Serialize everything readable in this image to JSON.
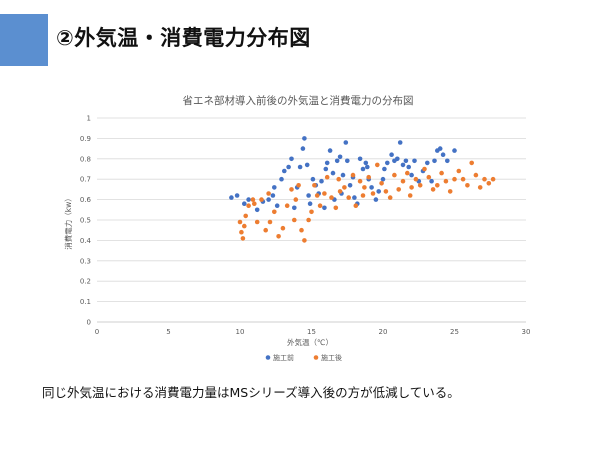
{
  "slide": {
    "title": "②外気温・消費電力分布図",
    "footnote": "同じ外気温における消費電力量はMSシリーズ導入後の方が低減している。",
    "accent_color": "#5b8fd0"
  },
  "chart_data": {
    "type": "scatter",
    "title": "省エネ部材導入前後の外気温と消費電力の分布図",
    "xlabel": "外気温（℃）",
    "ylabel": "消費電力（kw）",
    "xlim": [
      0,
      30
    ],
    "ylim": [
      0,
      1
    ],
    "xticks": [
      "0",
      "5",
      "10",
      "15",
      "20",
      "25",
      "30"
    ],
    "yticks": [
      "0",
      "0.1",
      "0.2",
      "0.3",
      "0.4",
      "0.5",
      "0.6",
      "0.7",
      "0.8",
      "0.9",
      "1"
    ],
    "grid": "horizontal",
    "legend": "bottom",
    "series": [
      {
        "name": "施工前",
        "color": "#4472c4",
        "points": [
          [
            9.4,
            0.61
          ],
          [
            9.8,
            0.62
          ],
          [
            10.3,
            0.58
          ],
          [
            10.6,
            0.6
          ],
          [
            11.2,
            0.55
          ],
          [
            11.6,
            0.59
          ],
          [
            12.0,
            0.6
          ],
          [
            12.3,
            0.62
          ],
          [
            12.6,
            0.57
          ],
          [
            12.9,
            0.7
          ],
          [
            13.1,
            0.74
          ],
          [
            13.4,
            0.76
          ],
          [
            13.6,
            0.8
          ],
          [
            13.8,
            0.56
          ],
          [
            14.0,
            0.66
          ],
          [
            14.2,
            0.76
          ],
          [
            14.4,
            0.85
          ],
          [
            14.5,
            0.9
          ],
          [
            14.7,
            0.77
          ],
          [
            14.9,
            0.58
          ],
          [
            15.1,
            0.7
          ],
          [
            15.3,
            0.67
          ],
          [
            15.5,
            0.63
          ],
          [
            15.7,
            0.69
          ],
          [
            15.9,
            0.56
          ],
          [
            16.1,
            0.78
          ],
          [
            16.3,
            0.84
          ],
          [
            16.5,
            0.73
          ],
          [
            16.6,
            0.6
          ],
          [
            16.8,
            0.79
          ],
          [
            17.0,
            0.81
          ],
          [
            17.2,
            0.72
          ],
          [
            17.4,
            0.88
          ],
          [
            17.5,
            0.79
          ],
          [
            17.7,
            0.67
          ],
          [
            17.9,
            0.71
          ],
          [
            18.0,
            0.61
          ],
          [
            18.2,
            0.58
          ],
          [
            18.4,
            0.8
          ],
          [
            18.6,
            0.75
          ],
          [
            18.8,
            0.78
          ],
          [
            19.0,
            0.7
          ],
          [
            19.2,
            0.66
          ],
          [
            19.5,
            0.6
          ],
          [
            19.7,
            0.64
          ],
          [
            20.0,
            0.7
          ],
          [
            20.3,
            0.78
          ],
          [
            20.6,
            0.82
          ],
          [
            20.8,
            0.79
          ],
          [
            21.0,
            0.8
          ],
          [
            21.2,
            0.88
          ],
          [
            21.4,
            0.77
          ],
          [
            21.6,
            0.79
          ],
          [
            21.8,
            0.76
          ],
          [
            22.0,
            0.72
          ],
          [
            22.2,
            0.79
          ],
          [
            22.5,
            0.69
          ],
          [
            22.8,
            0.74
          ],
          [
            23.1,
            0.78
          ],
          [
            23.4,
            0.69
          ],
          [
            23.6,
            0.79
          ],
          [
            23.8,
            0.84
          ],
          [
            24.0,
            0.85
          ],
          [
            24.2,
            0.82
          ],
          [
            24.5,
            0.79
          ],
          [
            25.0,
            0.84
          ],
          [
            12.4,
            0.66
          ],
          [
            14.8,
            0.62
          ],
          [
            16.0,
            0.75
          ],
          [
            17.1,
            0.63
          ],
          [
            18.9,
            0.76
          ],
          [
            20.1,
            0.75
          ]
        ]
      },
      {
        "name": "施工後",
        "color": "#ed7d31",
        "points": [
          [
            10.0,
            0.49
          ],
          [
            10.1,
            0.44
          ],
          [
            10.2,
            0.41
          ],
          [
            10.3,
            0.47
          ],
          [
            10.4,
            0.52
          ],
          [
            10.6,
            0.57
          ],
          [
            10.9,
            0.6
          ],
          [
            11.2,
            0.49
          ],
          [
            11.5,
            0.6
          ],
          [
            11.8,
            0.45
          ],
          [
            12.1,
            0.49
          ],
          [
            12.4,
            0.54
          ],
          [
            12.7,
            0.42
          ],
          [
            13.0,
            0.46
          ],
          [
            13.3,
            0.57
          ],
          [
            13.6,
            0.65
          ],
          [
            13.9,
            0.6
          ],
          [
            14.1,
            0.67
          ],
          [
            14.3,
            0.45
          ],
          [
            14.5,
            0.4
          ],
          [
            14.8,
            0.5
          ],
          [
            15.0,
            0.54
          ],
          [
            15.2,
            0.67
          ],
          [
            15.4,
            0.62
          ],
          [
            15.6,
            0.57
          ],
          [
            15.9,
            0.63
          ],
          [
            16.1,
            0.71
          ],
          [
            16.4,
            0.61
          ],
          [
            16.7,
            0.56
          ],
          [
            17.0,
            0.64
          ],
          [
            17.3,
            0.66
          ],
          [
            17.6,
            0.61
          ],
          [
            17.9,
            0.72
          ],
          [
            18.1,
            0.57
          ],
          [
            18.4,
            0.69
          ],
          [
            18.7,
            0.66
          ],
          [
            19.0,
            0.71
          ],
          [
            19.3,
            0.63
          ],
          [
            19.6,
            0.77
          ],
          [
            19.9,
            0.68
          ],
          [
            20.2,
            0.64
          ],
          [
            20.5,
            0.61
          ],
          [
            20.8,
            0.72
          ],
          [
            21.1,
            0.65
          ],
          [
            21.4,
            0.69
          ],
          [
            21.7,
            0.73
          ],
          [
            22.0,
            0.66
          ],
          [
            22.3,
            0.7
          ],
          [
            22.6,
            0.67
          ],
          [
            22.9,
            0.75
          ],
          [
            23.2,
            0.71
          ],
          [
            23.5,
            0.65
          ],
          [
            23.8,
            0.67
          ],
          [
            24.1,
            0.73
          ],
          [
            24.4,
            0.69
          ],
          [
            24.7,
            0.64
          ],
          [
            25.0,
            0.7
          ],
          [
            25.3,
            0.74
          ],
          [
            25.6,
            0.7
          ],
          [
            25.9,
            0.67
          ],
          [
            26.2,
            0.78
          ],
          [
            26.5,
            0.72
          ],
          [
            26.8,
            0.66
          ],
          [
            27.1,
            0.7
          ],
          [
            27.4,
            0.68
          ],
          [
            27.7,
            0.7
          ],
          [
            11.0,
            0.58
          ],
          [
            12.0,
            0.63
          ],
          [
            13.8,
            0.5
          ],
          [
            16.9,
            0.7
          ],
          [
            18.6,
            0.62
          ],
          [
            21.9,
            0.62
          ]
        ]
      }
    ]
  }
}
